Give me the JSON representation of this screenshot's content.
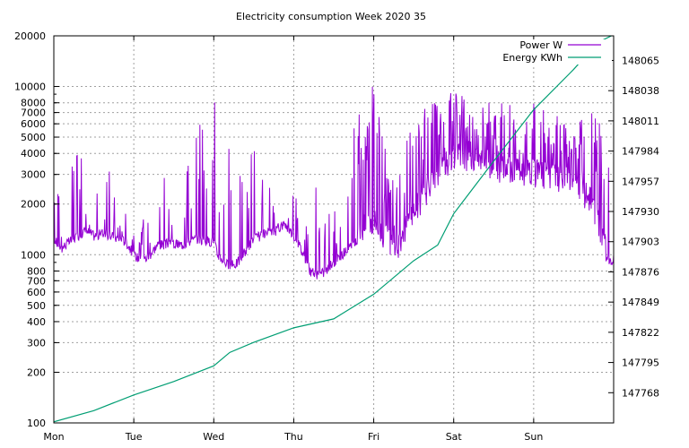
{
  "chart_data": {
    "type": "line",
    "title": "Electricity consumption Week 2020 35",
    "xlabel": "",
    "ylabel": "",
    "grid": true,
    "legend_placement": "top-right",
    "colors": {
      "power": "#9400d3",
      "energy": "#009e73"
    },
    "x_axis": {
      "categories": [
        "Mon",
        "Tue",
        "Wed",
        "Thu",
        "Fri",
        "Sat",
        "Sun"
      ],
      "range_days": [
        0,
        7
      ]
    },
    "y_axis_left": {
      "scale": "log",
      "range": [
        100,
        20000
      ],
      "tick_labels": [
        "100",
        "200",
        "300",
        "400",
        "500",
        "600",
        "700",
        "800",
        "1000",
        "2000",
        "3000",
        "4000",
        "5000",
        "6000",
        "7000",
        "8000",
        "10000",
        "20000"
      ]
    },
    "y_axis_right": {
      "scale": "linear",
      "range": [
        147741,
        148087
      ],
      "tick_labels": [
        "147768",
        "147795",
        "147822",
        "147849",
        "147876",
        "147903",
        "147930",
        "147957",
        "147984",
        "148011",
        "148038",
        "148065"
      ]
    },
    "series": [
      {
        "name": "Power W",
        "axis": "left",
        "color": "#9400d3",
        "x_days": [
          0.0,
          0.05,
          0.1,
          0.2,
          0.3,
          0.35,
          0.4,
          0.45,
          0.5,
          0.55,
          0.6,
          0.7,
          0.8,
          0.9,
          1.0,
          1.05,
          1.1,
          1.15,
          1.2,
          1.3,
          1.4,
          1.45,
          1.5,
          1.6,
          1.7,
          1.8,
          1.9,
          2.0,
          2.05,
          2.1,
          2.15,
          2.2,
          2.3,
          2.4,
          2.5,
          2.6,
          2.7,
          2.8,
          2.85,
          2.9,
          3.0,
          3.05,
          3.1,
          3.15,
          3.2,
          3.3,
          3.4,
          3.5,
          3.6,
          3.7,
          3.8,
          3.9,
          4.0,
          4.05,
          4.1,
          4.15,
          4.2,
          4.3,
          4.4,
          4.5,
          4.6,
          4.7,
          4.8,
          4.9,
          5.0,
          5.1,
          5.2,
          5.3,
          5.4,
          5.5,
          5.6,
          5.7,
          5.8,
          5.9,
          6.0,
          6.1,
          6.2,
          6.3,
          6.4,
          6.5,
          6.6,
          6.7,
          6.75,
          6.8,
          6.85,
          6.9,
          6.95,
          7.0
        ],
        "base_values": [
          1250,
          1150,
          1100,
          1200,
          1300,
          1350,
          1400,
          1350,
          1300,
          1300,
          1350,
          1300,
          1250,
          1200,
          1000,
          960,
          940,
          950,
          1000,
          1150,
          1150,
          1200,
          1150,
          1150,
          1200,
          1250,
          1200,
          1200,
          1000,
          950,
          900,
          850,
          900,
          1050,
          1250,
          1300,
          1350,
          1400,
          1500,
          1500,
          1300,
          1200,
          1050,
          950,
          800,
          750,
          800,
          900,
          1000,
          1100,
          1200,
          1300,
          1400,
          1300,
          1200,
          1100,
          1050,
          1000,
          1300,
          1600,
          1900,
          2200,
          2500,
          3000,
          3500,
          3400,
          3300,
          3100,
          3000,
          2900,
          2850,
          2800,
          2750,
          2700,
          2700,
          2650,
          2600,
          2550,
          2450,
          2300,
          2100,
          1900,
          1700,
          1400,
          1200,
          1000,
          900,
          950
        ],
        "peak_values": [
          2800,
          2600,
          1600,
          3200,
          4000,
          3800,
          1800,
          1500,
          1500,
          4000,
          2000,
          3800,
          1500,
          2500,
          1300,
          1200,
          2000,
          2800,
          1300,
          2500,
          3000,
          2200,
          1800,
          2500,
          5000,
          7000,
          6000,
          12000,
          3500,
          2500,
          2000,
          5000,
          3500,
          2500,
          5000,
          4000,
          2500,
          1600,
          1600,
          1600,
          2500,
          3000,
          2200,
          3000,
          2500,
          3000,
          1800,
          2000,
          1500,
          3000,
          8000,
          5000,
          18000,
          7000,
          8000,
          4000,
          3000,
          2500,
          6000,
          5000,
          8000,
          10000,
          8000,
          6000,
          12000,
          9000,
          7000,
          6000,
          9000,
          7000,
          8000,
          9000,
          5000,
          6000,
          8000,
          9000,
          5500,
          7000,
          6000,
          5000,
          7000,
          9000,
          6000,
          8000,
          7000,
          5000,
          3500,
          3000
        ]
      },
      {
        "name": "Energy KWh",
        "axis": "right",
        "color": "#009e73",
        "x_days": [
          0.0,
          0.5,
          1.0,
          1.5,
          2.0,
          2.2,
          2.5,
          3.0,
          3.5,
          4.0,
          4.5,
          4.8,
          5.0,
          5.5,
          6.0,
          6.5,
          6.8,
          7.0
        ],
        "values": [
          147742,
          147752,
          147766,
          147778,
          147792,
          147804,
          147813,
          147826,
          147834,
          147856,
          147886,
          147900,
          147928,
          147975,
          148021,
          148057,
          148081,
          148088
        ]
      }
    ]
  }
}
